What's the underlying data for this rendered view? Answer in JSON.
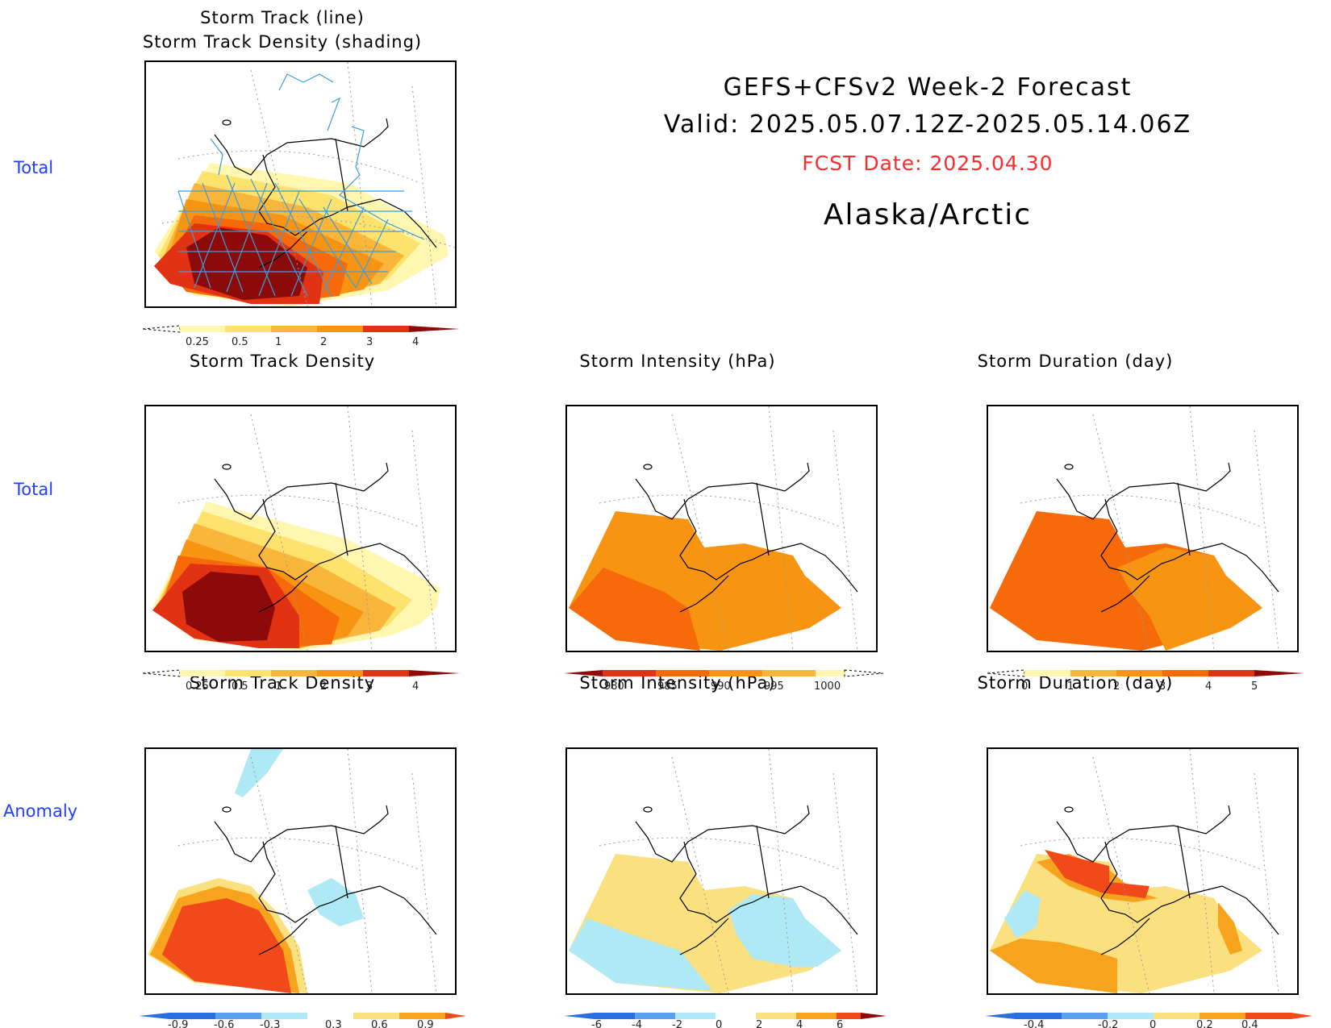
{
  "header": {
    "title_line1": "GEFS+CFSv2 Week-2 Forecast",
    "title_line2": "Valid: 2025.05.07.12Z-2025.05.14.06Z",
    "fcst_date": "FCST Date: 2025.04.30",
    "region": "Alaska/Arctic"
  },
  "row_labels": {
    "row1": "Total",
    "row2": "Total",
    "row3": "Anomaly"
  },
  "colors": {
    "row_label": "#1f3fff",
    "fcst_date": "#ff2a2a",
    "track_line": "#3b9ddd",
    "density_scale": [
      "#fff6b0",
      "#fde36d",
      "#f9b63a",
      "#f79513",
      "#f66a0a",
      "#e23214",
      "#8c0a0a"
    ],
    "anomaly_scale": [
      "#2b6ee0",
      "#5aa0ee",
      "#aee9f5",
      "#ffffff",
      "#fae07f",
      "#f8a31e",
      "#f2491b"
    ]
  },
  "panels": {
    "track": {
      "title1": "Storm Track (line)",
      "title2": "Storm Track Density (shading)",
      "colorbar": [
        "0.25",
        "0.5",
        "1",
        "2",
        "3",
        "4"
      ]
    },
    "total_density": {
      "title": "Storm Track Density",
      "colorbar": [
        "0.25",
        "0.5",
        "1",
        "2",
        "3",
        "4"
      ]
    },
    "total_intensity": {
      "title": "Storm Intensity (hPa)",
      "colorbar": [
        "980",
        "985",
        "990",
        "995",
        "1000"
      ]
    },
    "total_duration": {
      "title": "Storm Duration (day)",
      "colorbar": [
        "0",
        "1",
        "2",
        "3",
        "4",
        "5"
      ]
    },
    "anom_density": {
      "title": "Storm Track Density",
      "colorbar": [
        "-0.9",
        "-0.6",
        "-0.3",
        "0.3",
        "0.6",
        "0.9"
      ]
    },
    "anom_intensity": {
      "title": "Storm Intensity (hPa)",
      "colorbar": [
        "-6",
        "-4",
        "-2",
        "0",
        "2",
        "4",
        "6"
      ]
    },
    "anom_duration": {
      "title": "Storm Duration (day)",
      "colorbar": [
        "-0.4",
        "-0.2",
        "0",
        "0.2",
        "0.4"
      ]
    }
  }
}
